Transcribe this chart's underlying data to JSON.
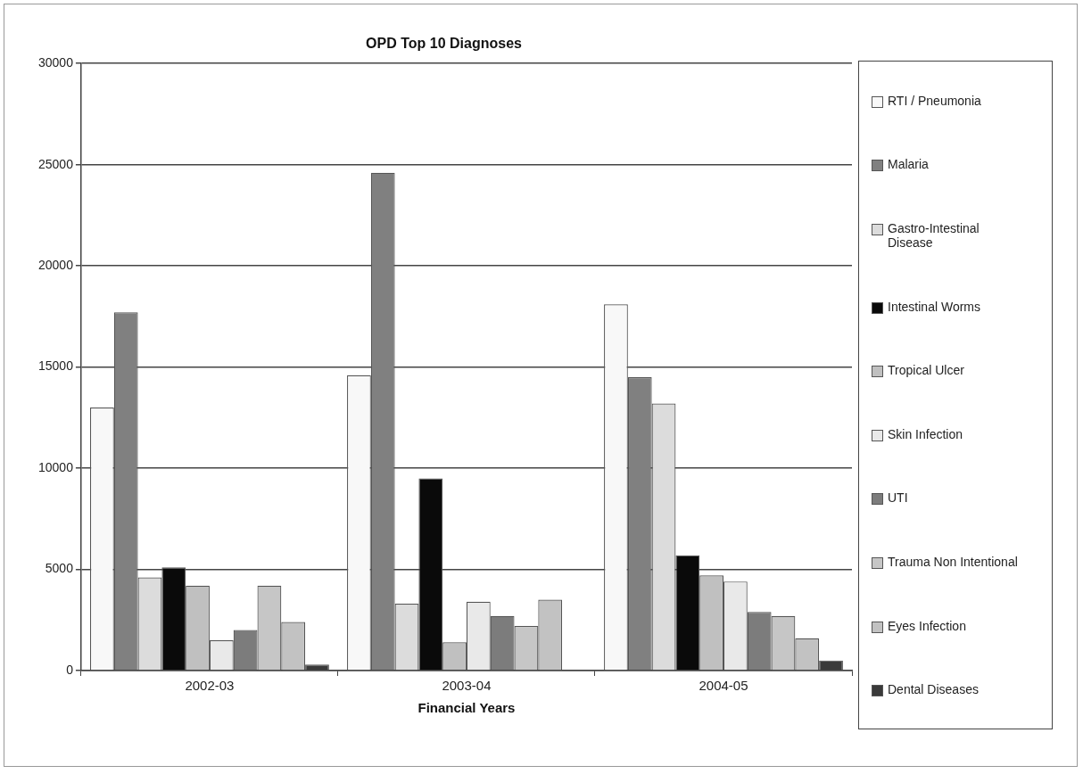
{
  "chart_data": {
    "type": "bar",
    "title": "OPD Top 10 Diagnoses",
    "xlabel": "Financial Years",
    "categories": [
      "2002-03",
      "2003-04",
      "2004-05"
    ],
    "series": [
      {
        "name": "RTI / Pneumonia",
        "color": "#f8f8f8",
        "values": [
          13000,
          14600,
          18100
        ]
      },
      {
        "name": "Malaria",
        "color": "#808080",
        "values": [
          17700,
          24600,
          14500
        ]
      },
      {
        "name": "Gastro-Intestinal Disease",
        "color": "#dcdcdc",
        "values": [
          4600,
          3300,
          13200
        ]
      },
      {
        "name": "Intestinal Worms",
        "color": "#0a0a0a",
        "values": [
          5100,
          9500,
          5700
        ]
      },
      {
        "name": "Tropical Ulcer",
        "color": "#c0c0c0",
        "values": [
          4200,
          1400,
          4700
        ]
      },
      {
        "name": "Skin Infection",
        "color": "#e9e9e9",
        "values": [
          1500,
          3400,
          4400
        ]
      },
      {
        "name": "UTI",
        "color": "#7c7c7c",
        "values": [
          2000,
          2700,
          2900
        ]
      },
      {
        "name": "Trauma Non Intentional",
        "color": "#c6c6c6",
        "values": [
          4200,
          2200,
          2700
        ]
      },
      {
        "name": "Eyes Infection",
        "color": "#c2c2c2",
        "values": [
          2400,
          3500,
          1600
        ]
      },
      {
        "name": "Dental Diseases",
        "color": "#3a3a3a",
        "values": [
          300,
          null,
          500
        ]
      }
    ],
    "ylim": [
      0,
      30000
    ],
    "yticks": [
      0,
      5000,
      10000,
      15000,
      20000,
      25000,
      30000
    ],
    "grid": "y",
    "legend": "right"
  }
}
